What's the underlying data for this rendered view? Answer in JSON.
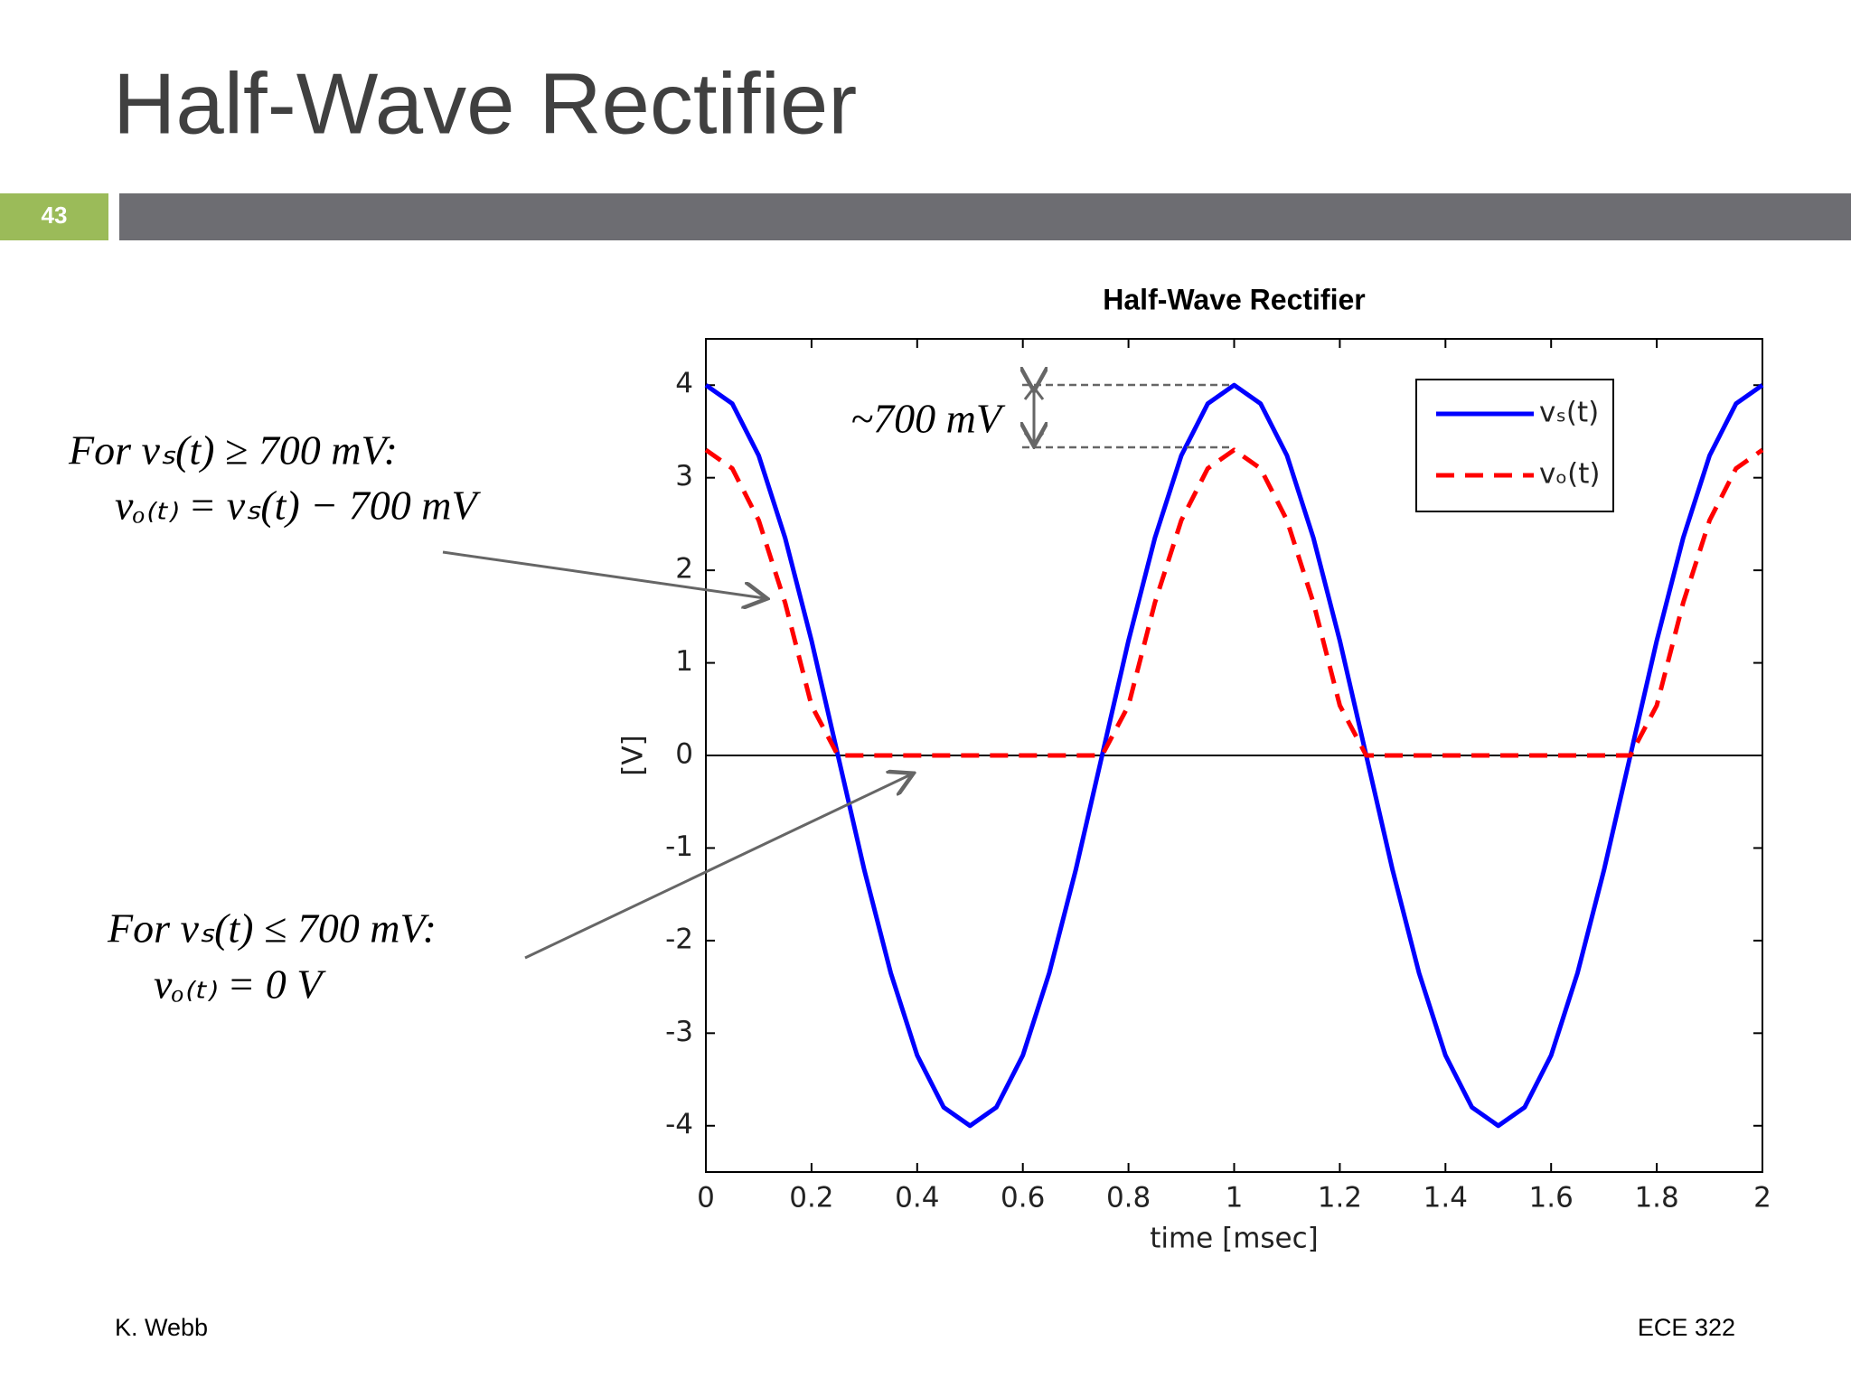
{
  "slide": {
    "title": "Half-Wave Rectifier",
    "number": "43",
    "footer_left": "K. Webb",
    "footer_right": "ECE 322",
    "note1": {
      "line1": "For vₛ(t) ≥ 700 mV:",
      "line2": "vₒ₍ₜ₎ = vₛ(t) − 700 mV"
    },
    "note2": {
      "line1": "For vₛ(t) ≤ 700 mV:",
      "line2": "vₒ₍ₜ₎ = 0 V"
    }
  },
  "chart_data": {
    "type": "line",
    "title": "Half-Wave Rectifier",
    "xlabel": "time    [msec]",
    "ylabel": "[V]",
    "annotation": "~700 mV",
    "x": [
      0,
      0.05,
      0.1,
      0.15,
      0.2,
      0.25,
      0.3,
      0.35,
      0.4,
      0.45,
      0.5,
      0.55,
      0.6,
      0.65,
      0.7,
      0.75,
      0.8,
      0.85,
      0.9,
      0.95,
      1,
      1.05,
      1.1,
      1.15,
      1.2,
      1.25,
      1.3,
      1.35,
      1.4,
      1.45,
      1.5,
      1.55,
      1.6,
      1.65,
      1.7,
      1.75,
      1.8,
      1.85,
      1.9,
      1.95,
      2
    ],
    "series": [
      {
        "name": "vₛ(t)",
        "color": "#0000ff",
        "dash": false,
        "values": [
          4,
          3.8,
          3.24,
          2.35,
          1.24,
          0,
          -1.24,
          -2.35,
          -3.24,
          -3.8,
          -4,
          -3.8,
          -3.24,
          -2.35,
          -1.24,
          0,
          1.24,
          2.35,
          3.24,
          3.8,
          4,
          3.8,
          3.24,
          2.35,
          1.24,
          0,
          -1.24,
          -2.35,
          -3.24,
          -3.8,
          -4,
          -3.8,
          -3.24,
          -2.35,
          -1.24,
          0,
          1.24,
          2.35,
          3.24,
          3.8,
          4
        ]
      },
      {
        "name": "vₒ(t)",
        "color": "#ff0000",
        "dash": true,
        "values": [
          3.3,
          3.1,
          2.54,
          1.65,
          0.54,
          0,
          0,
          0,
          0,
          0,
          0,
          0,
          0,
          0,
          0,
          0,
          0.54,
          1.65,
          2.54,
          3.1,
          3.3,
          3.1,
          2.54,
          1.65,
          0.54,
          0,
          0,
          0,
          0,
          0,
          0,
          0,
          0,
          0,
          0,
          0,
          0.54,
          1.65,
          2.54,
          3.1,
          3.3
        ]
      }
    ],
    "xlim": [
      0,
      2
    ],
    "xticks": [
      0,
      0.2,
      0.4,
      0.6,
      0.8,
      1,
      1.2,
      1.4,
      1.6,
      1.8,
      2
    ],
    "ylim": [
      -4.5,
      4.5
    ],
    "yticks": [
      -4,
      -3,
      -2,
      -1,
      0,
      1,
      2,
      3,
      4
    ],
    "legend": "upper right"
  }
}
